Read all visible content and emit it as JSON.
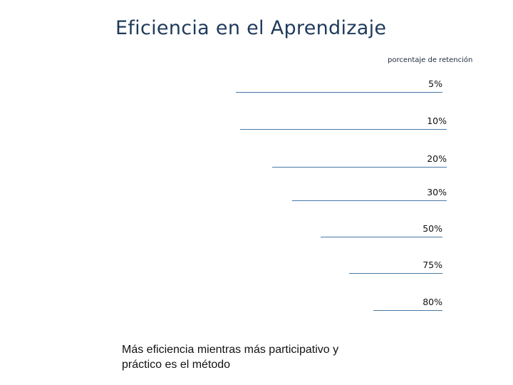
{
  "title": "Eficiencia en el Aprendizaje",
  "subtitle": "porcentaje de retención",
  "levels": [
    "5%",
    "10%",
    "20%",
    "30%",
    "50%",
    "75%",
    "80%"
  ],
  "caption": "Más eficiencia mientras más participativo y práctico es el método",
  "colors": {
    "title": "#1f3a5a",
    "line": "#4a78a8"
  }
}
